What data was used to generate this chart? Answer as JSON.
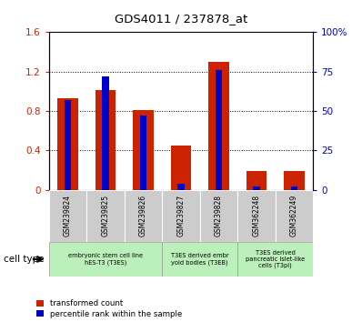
{
  "title": "GDS4011 / 237878_at",
  "samples": [
    "GSM239824",
    "GSM239825",
    "GSM239826",
    "GSM239827",
    "GSM239828",
    "GSM362248",
    "GSM362249"
  ],
  "red_values": [
    0.93,
    1.01,
    0.81,
    0.45,
    1.3,
    0.195,
    0.195
  ],
  "blue_pct": [
    57,
    72,
    47,
    4,
    76,
    2,
    2
  ],
  "ylim_left": [
    0,
    1.6
  ],
  "ylim_right": [
    0,
    100
  ],
  "yticks_left": [
    0,
    0.4,
    0.8,
    1.2,
    1.6
  ],
  "yticks_right": [
    0,
    25,
    50,
    75,
    100
  ],
  "ytick_labels_left": [
    "0",
    "0.4",
    "0.8",
    "1.2",
    "1.6"
  ],
  "ytick_labels_right": [
    "0",
    "25",
    "50",
    "75",
    "100%"
  ],
  "red_color": "#cc2200",
  "blue_color": "#0000cc",
  "red_bar_width": 0.55,
  "blue_bar_width": 0.18,
  "groups": [
    {
      "label": "embryonic stem cell line\nhES-T3 (T3ES)",
      "start": 0,
      "end": 2
    },
    {
      "label": "T3ES derived embr\nyoid bodies (T3EB)",
      "start": 3,
      "end": 4
    },
    {
      "label": "T3ES derived\npancreatic islet-like\ncells (T3pi)",
      "start": 5,
      "end": 6
    }
  ],
  "group_color": "#bbf0bb",
  "legend_red_label": "transformed count",
  "legend_blue_label": "percentile rank within the sample",
  "cell_type_label": "cell type",
  "sample_bg_color": "#cccccc"
}
